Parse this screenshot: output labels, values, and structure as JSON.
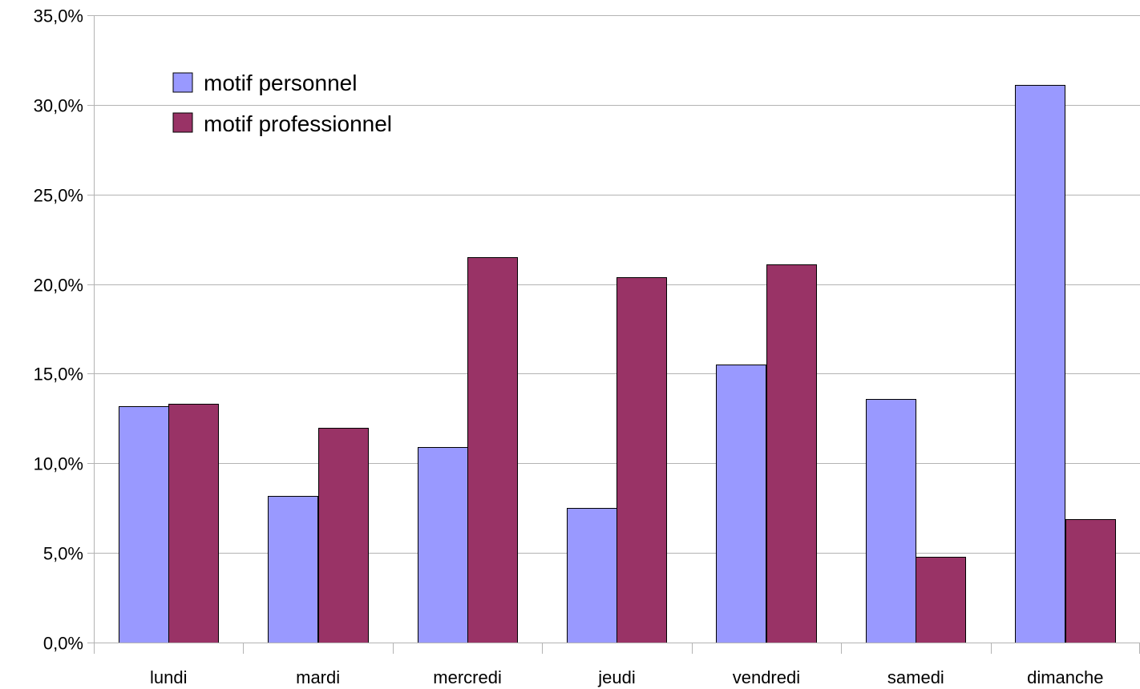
{
  "chart_data": {
    "type": "bar",
    "title": "",
    "xlabel": "",
    "ylabel": "",
    "categories": [
      "lundi",
      "mardi",
      "mercredi",
      "jeudi",
      "vendredi",
      "samedi",
      "dimanche"
    ],
    "series": [
      {
        "name": "motif personnel",
        "color": "#9999ff",
        "values": [
          13.2,
          8.2,
          10.9,
          7.5,
          15.5,
          13.6,
          31.1
        ]
      },
      {
        "name": "motif professionnel",
        "color": "#993366",
        "values": [
          13.3,
          12.0,
          21.5,
          20.4,
          21.1,
          4.8,
          6.9
        ]
      }
    ],
    "ylim": [
      0,
      35
    ],
    "yticks": [
      "0,0%",
      "5,0%",
      "10,0%",
      "15,0%",
      "20,0%",
      "25,0%",
      "30,0%",
      "35,0%"
    ],
    "grid": true,
    "legend_position": "top-left"
  }
}
